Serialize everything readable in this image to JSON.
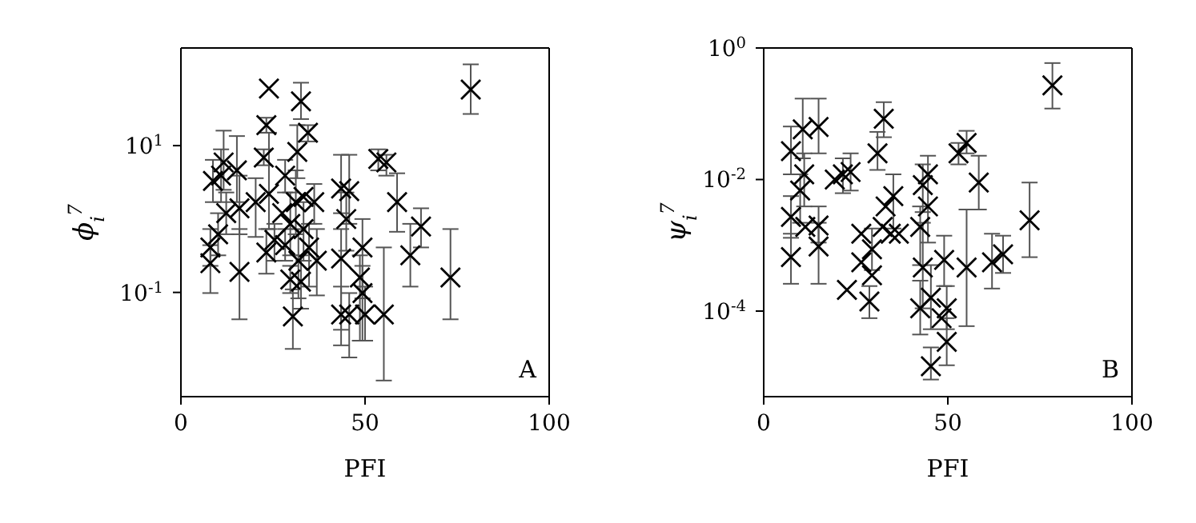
{
  "chart_data": [
    {
      "type": "scatter",
      "xlabel": "PFI",
      "ylabel": "ϕ$_{i}$$^{7}$",
      "annotations": [
        "A"
      ],
      "color": "#000000",
      "marker": "cross",
      "log": "y",
      "xlim": [
        0,
        100
      ],
      "xticks": [
        0,
        50,
        100
      ],
      "ylim": [
        0.0038,
        214
      ],
      "yticks": [
        {
          "value": 0.1,
          "label": "10$^{-1}$"
        },
        {
          "value": 10,
          "label": "10$^{1}$"
        }
      ],
      "x": [
        23.9,
        32.6,
        78.7,
        23.2,
        34.5,
        31.6,
        22.5,
        53.6,
        55.8,
        11.6,
        8.7,
        15.2,
        28.3,
        23.9,
        43.5,
        45.7,
        58.7,
        15.9,
        20.3,
        12.3,
        31.2,
        36.2,
        44.9,
        29.7,
        33.3,
        10.1,
        65.2,
        25.4,
        28.3,
        34.8,
        49.3,
        8.0,
        23.2,
        62.3,
        31.9,
        8.0,
        43.5,
        36.9,
        15.9,
        48.6,
        29.7,
        73.2,
        32.6,
        49.3,
        30.4,
        43.5,
        45.7,
        50.0,
        55.1,
        10.9,
        33.3,
        27.5
      ],
      "values": [
        60,
        40,
        58,
        19,
        15,
        8.2,
        6.9,
        6.6,
        5.9,
        5.9,
        3.3,
        4.6,
        3.9,
        2.2,
        2.6,
        2.4,
        1.7,
        1.4,
        1.7,
        1.2,
        1.7,
        1.7,
        1.0,
        0.86,
        0.73,
        0.62,
        0.79,
        0.52,
        0.44,
        0.41,
        0.41,
        0.41,
        0.35,
        0.32,
        0.27,
        0.25,
        0.29,
        0.27,
        0.19,
        0.16,
        0.15,
        0.16,
        0.14,
        0.098,
        0.047,
        0.05,
        0.05,
        0.05,
        0.05,
        3.9,
        2.0,
        1.2
      ],
      "errors": [
        null,
        [
          23,
          72
        ],
        [
          27,
          128
        ],
        [
          15,
          24
        ],
        [
          11.4,
          19
        ],
        [
          3.6,
          19
        ],
        [
          5.4,
          8.9
        ],
        [
          4.6,
          8.9
        ],
        [
          3.9,
          7.5
        ],
        [
          2.5,
          16
        ],
        [
          1.7,
          6.4
        ],
        [
          1.7,
          13.5
        ],
        [
          2.3,
          6.4
        ],
        [
          0.73,
          15
        ],
        [
          1.2,
          7.5
        ],
        [
          0.86,
          7.5
        ],
        [
          0.67,
          4.2
        ],
        [
          0.62,
          3.9
        ],
        [
          0.57,
          3.6
        ],
        [
          0.62,
          2.3
        ],
        [
          0.62,
          4.6
        ],
        [
          0.86,
          3.0
        ],
        [
          0.37,
          2.3
        ],
        [
          0.32,
          2.3
        ],
        [
          0.27,
          1.7
        ],
        [
          0.32,
          1.2
        ],
        [
          0.41,
          1.4
        ],
        [
          0.27,
          0.86
        ],
        [
          0.27,
          0.73
        ],
        [
          0.12,
          0.86
        ],
        [
          0.083,
          1.0
        ],
        [
          0.23,
          0.73
        ],
        [
          0.18,
          0.73
        ],
        [
          0.12,
          0.86
        ],
        [
          0.083,
          0.73
        ],
        [
          0.098,
          0.44
        ],
        [
          0.031,
          0.73
        ],
        [
          0.091,
          0.73
        ],
        [
          0.043,
          0.73
        ],
        [
          0.022,
          0.32
        ],
        [
          0.098,
          0.23
        ],
        [
          0.043,
          0.73
        ],
        [
          0.06,
          0.32
        ],
        [
          0.022,
          0.23
        ],
        [
          0.017,
          0.11
        ],
        [
          0.019,
          0.12
        ],
        [
          0.013,
          0.098
        ],
        [
          0.022,
          0.12
        ],
        [
          0.0063,
          0.41
        ],
        [
          1.7,
          8.9
        ],
        null,
        null
      ]
    },
    {
      "type": "scatter",
      "xlabel": "PFI",
      "ylabel": "ψ$_{i}$$^{7}$",
      "annotations": [
        "B"
      ],
      "color": "#000000",
      "marker": "cross",
      "log": "y",
      "xlim": [
        0,
        100
      ],
      "xticks": [
        0,
        50,
        100
      ],
      "ylim": [
        5e-06,
        1
      ],
      "yticks": [
        {
          "value": 0.0001,
          "label": "10$^{-4}$"
        },
        {
          "value": 0.01,
          "label": "10$^{-2}$"
        },
        {
          "value": 1,
          "label": "10$^{0}$"
        }
      ],
      "x": [
        78.4,
        32.6,
        10.6,
        14.9,
        7.4,
        55.1,
        52.9,
        30.9,
        58.4,
        21.5,
        23.6,
        44.6,
        11.0,
        43.2,
        9.9,
        35.2,
        19.3,
        33.1,
        44.6,
        7.4,
        11.3,
        14.9,
        42.5,
        72.2,
        26.5,
        32.3,
        36.7,
        14.9,
        7.4,
        29.4,
        49.0,
        55.1,
        62.0,
        65.0,
        43.2,
        26.5,
        22.6,
        29.4,
        28.7,
        42.5,
        45.4,
        49.7,
        49.7,
        45.4,
        48.3,
        34.5
      ],
      "values": [
        0.27,
        0.084,
        0.058,
        0.063,
        0.027,
        0.036,
        0.025,
        0.025,
        0.009,
        0.012,
        0.013,
        0.012,
        0.012,
        0.0082,
        0.0068,
        0.0056,
        0.01,
        0.0039,
        0.0039,
        0.0027,
        0.0019,
        0.002,
        0.0019,
        0.0024,
        0.0015,
        0.0019,
        0.0015,
        0.00096,
        0.00066,
        0.00087,
        0.0006,
        0.00046,
        0.00055,
        0.00073,
        0.00046,
        0.00055,
        0.00021,
        0.00035,
        0.00014,
        0.00011,
        0.00016,
        0.00011,
        3.4e-05,
        1.45e-05,
        7.8e-05,
        0.0015
      ],
      "errors": [
        [
          0.12,
          0.59
        ],
        [
          0.044,
          0.15
        ],
        [
          0.021,
          0.17
        ],
        [
          0.025,
          0.17
        ],
        [
          0.012,
          0.064
        ],
        [
          0.025,
          0.055
        ],
        [
          0.017,
          0.036
        ],
        [
          0.014,
          0.053
        ],
        [
          0.0035,
          0.023
        ],
        [
          0.0062,
          0.021
        ],
        [
          0.0068,
          0.025
        ],
        [
          0.0011,
          0.023
        ],
        [
          0.0039,
          0.025
        ],
        [
          0.0032,
          0.017
        ],
        [
          0.0022,
          0.012
        ],
        [
          0.0018,
          0.012
        ],
        null,
        null,
        null,
        [
          0.0013,
          0.0056
        ],
        null,
        [
          0.0011,
          0.0039
        ],
        [
          0.0005,
          0.0039
        ],
        [
          0.00066,
          0.009
        ],
        null,
        null,
        null,
        [
          0.00026,
          0.0022
        ],
        [
          0.00026,
          0.0015
        ],
        [
          0.00042,
          0.0018
        ],
        [
          0.00024,
          0.0014
        ],
        [
          5.9e-05,
          0.0035
        ],
        [
          0.00022,
          0.0015
        ],
        [
          0.00038,
          0.0014
        ],
        [
          0.00011,
          0.0022
        ],
        null,
        null,
        null,
        [
          7.8e-05,
          0.00024
        ],
        [
          4.4e-05,
          0.00029
        ],
        [
          5.3e-05,
          0.0005
        ],
        [
          5.3e-05,
          0.00024
        ],
        [
          1.5e-05,
          7.8e-05
        ],
        [
          9.1e-06,
          2.8e-05
        ],
        null,
        null
      ]
    }
  ]
}
